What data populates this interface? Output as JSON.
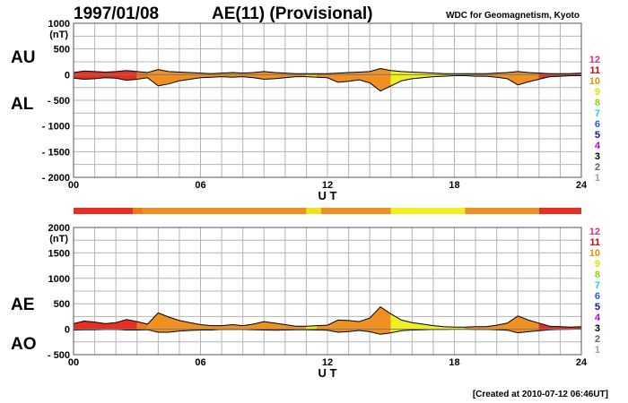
{
  "header": {
    "date": "1997/01/08",
    "title": "AE(11) (Provisional)",
    "source": "WDC for Geomagnetism, Kyoto"
  },
  "footer": {
    "created": "[Created at 2010-07-12 06:46UT]"
  },
  "legend_colors": [
    {
      "label": "12",
      "color": "#e8288c"
    },
    {
      "label": "11",
      "color": "#e00000"
    },
    {
      "label": "10",
      "color": "#f09000"
    },
    {
      "label": "9",
      "color": "#e8e000"
    },
    {
      "label": "8",
      "color": "#90d800"
    },
    {
      "label": "7",
      "color": "#20c8e8"
    },
    {
      "label": "6",
      "color": "#1860f0"
    },
    {
      "label": "5",
      "color": "#1010a0"
    },
    {
      "label": "4",
      "color": "#c000c0"
    },
    {
      "label": "3",
      "color": "#000000"
    },
    {
      "label": "2",
      "color": "#606060"
    },
    {
      "label": "1",
      "color": "#a0a0a0"
    }
  ],
  "station_bar": [
    {
      "from": 0,
      "to": 2.8,
      "color": "#e83020"
    },
    {
      "from": 2.8,
      "to": 3.3,
      "color": "#f07a18"
    },
    {
      "from": 3.3,
      "to": 11,
      "color": "#f09020"
    },
    {
      "from": 11,
      "to": 11.7,
      "color": "#f0e020"
    },
    {
      "from": 11.7,
      "to": 15,
      "color": "#f09020"
    },
    {
      "from": 15,
      "to": 18.5,
      "color": "#f0f020"
    },
    {
      "from": 18.5,
      "to": 22,
      "color": "#f09020"
    },
    {
      "from": 22,
      "to": 24,
      "color": "#e83020"
    }
  ],
  "chart_data": [
    {
      "type": "area",
      "title": "AU / AL",
      "series_labels": [
        "AU",
        "AL"
      ],
      "ylabel": "(nT)",
      "xlabel": "U T",
      "ylim": [
        -2000,
        1000
      ],
      "yticks": [
        "1000",
        "500",
        "0",
        "- 500",
        "- 1000",
        "- 1500",
        "- 2000"
      ],
      "ytick_values": [
        1000,
        500,
        0,
        -500,
        -1000,
        -1500,
        -2000
      ],
      "xticks": [
        "00",
        "06",
        "12",
        "18",
        "24"
      ],
      "xtick_values": [
        0,
        6,
        12,
        18,
        24
      ],
      "x": [
        0,
        0.5,
        1,
        1.5,
        2,
        2.5,
        3,
        3.5,
        4,
        4.5,
        5,
        5.5,
        6,
        6.5,
        7,
        7.5,
        8,
        8.5,
        9,
        9.5,
        10,
        10.5,
        11,
        11.5,
        12,
        12.5,
        13,
        13.5,
        14,
        14.5,
        15,
        15.5,
        16,
        16.5,
        17,
        17.5,
        18,
        18.5,
        19,
        19.5,
        20,
        20.5,
        21,
        21.5,
        22,
        22.5,
        23,
        23.5,
        24
      ],
      "series": [
        {
          "name": "AU",
          "values": [
            40,
            70,
            60,
            50,
            60,
            80,
            60,
            40,
            100,
            60,
            50,
            40,
            30,
            20,
            30,
            40,
            30,
            40,
            60,
            40,
            30,
            20,
            20,
            20,
            20,
            30,
            40,
            50,
            60,
            120,
            80,
            60,
            50,
            40,
            30,
            20,
            20,
            20,
            20,
            20,
            30,
            40,
            60,
            40,
            30,
            20,
            20,
            20,
            30
          ]
        },
        {
          "name": "AL",
          "values": [
            -70,
            -90,
            -80,
            -60,
            -70,
            -110,
            -90,
            -60,
            -220,
            -180,
            -120,
            -90,
            -60,
            -50,
            -40,
            -50,
            -40,
            -60,
            -90,
            -80,
            -60,
            -40,
            -40,
            -50,
            -60,
            -150,
            -130,
            -100,
            -160,
            -320,
            -220,
            -120,
            -80,
            -60,
            -40,
            -30,
            -20,
            -20,
            -30,
            -30,
            -50,
            -80,
            -200,
            -140,
            -90,
            -40,
            -30,
            -20,
            -20
          ]
        }
      ]
    },
    {
      "type": "area",
      "title": "AE / AO",
      "series_labels": [
        "AE",
        "AO"
      ],
      "ylabel": "(nT)",
      "xlabel": "U T",
      "ylim": [
        -500,
        2000
      ],
      "yticks": [
        "2000",
        "1500",
        "1000",
        "500",
        "0",
        "- 500"
      ],
      "ytick_values": [
        2000,
        1500,
        1000,
        500,
        0,
        -500
      ],
      "xticks": [
        "00",
        "06",
        "12",
        "18",
        "24"
      ],
      "xtick_values": [
        0,
        6,
        12,
        18,
        24
      ],
      "x": [
        0,
        0.5,
        1,
        1.5,
        2,
        2.5,
        3,
        3.5,
        4,
        4.5,
        5,
        5.5,
        6,
        6.5,
        7,
        7.5,
        8,
        8.5,
        9,
        9.5,
        10,
        10.5,
        11,
        11.5,
        12,
        12.5,
        13,
        13.5,
        14,
        14.5,
        15,
        15.5,
        16,
        16.5,
        17,
        17.5,
        18,
        18.5,
        19,
        19.5,
        20,
        20.5,
        21,
        21.5,
        22,
        22.5,
        23,
        23.5,
        24
      ],
      "series": [
        {
          "name": "AE",
          "values": [
            110,
            160,
            140,
            110,
            130,
            190,
            150,
            100,
            320,
            240,
            170,
            130,
            90,
            70,
            70,
            90,
            70,
            100,
            150,
            120,
            90,
            60,
            60,
            70,
            80,
            180,
            170,
            150,
            220,
            440,
            300,
            180,
            130,
            100,
            70,
            50,
            40,
            40,
            50,
            50,
            80,
            120,
            260,
            180,
            120,
            60,
            50,
            40,
            50
          ]
        },
        {
          "name": "AO",
          "values": [
            -15,
            -10,
            -10,
            -5,
            -5,
            -15,
            -15,
            -10,
            -60,
            -60,
            -35,
            -25,
            -15,
            -15,
            -5,
            -5,
            -5,
            -10,
            -15,
            -20,
            -15,
            -10,
            -10,
            -15,
            -20,
            -60,
            -45,
            -25,
            -50,
            -100,
            -70,
            -30,
            -15,
            -10,
            -5,
            -5,
            0,
            0,
            -5,
            -5,
            -10,
            -20,
            -70,
            -50,
            -30,
            -10,
            -5,
            0,
            5
          ]
        }
      ]
    }
  ]
}
